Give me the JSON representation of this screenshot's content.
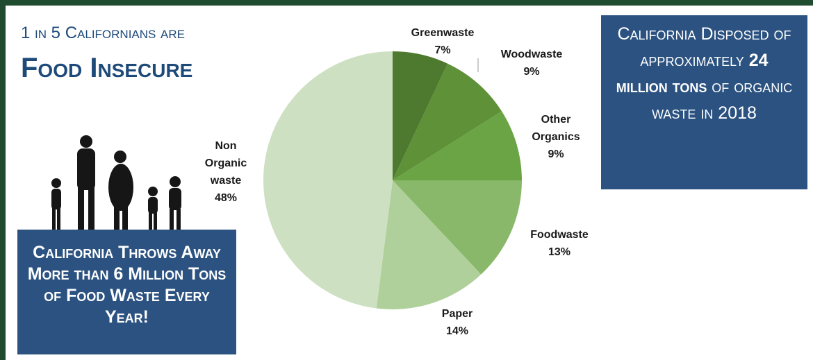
{
  "header": {
    "line1": "1 in 5 Californians are",
    "line2": "Food Insecure"
  },
  "left_box": "California Throws Away More than 6 Million Tons of Food Waste Every Year!",
  "right_box": {
    "parts": [
      "California Disposed of approximately",
      "24 million tons",
      "of organic waste in 2018"
    ]
  },
  "chart_data": {
    "type": "pie",
    "categories": [
      "Greenwaste",
      "Woodwaste",
      "Other Organics",
      "Foodwaste",
      "Paper",
      "Non Organic waste"
    ],
    "values": [
      7,
      9,
      9,
      13,
      14,
      48
    ],
    "value_labels": [
      "7%",
      "9%",
      "9%",
      "13%",
      "14%",
      "48%"
    ],
    "colors": [
      "#4e7a2f",
      "#5f9138",
      "#6aa444",
      "#8ab86a",
      "#afd09a",
      "#cde0c2"
    ]
  }
}
